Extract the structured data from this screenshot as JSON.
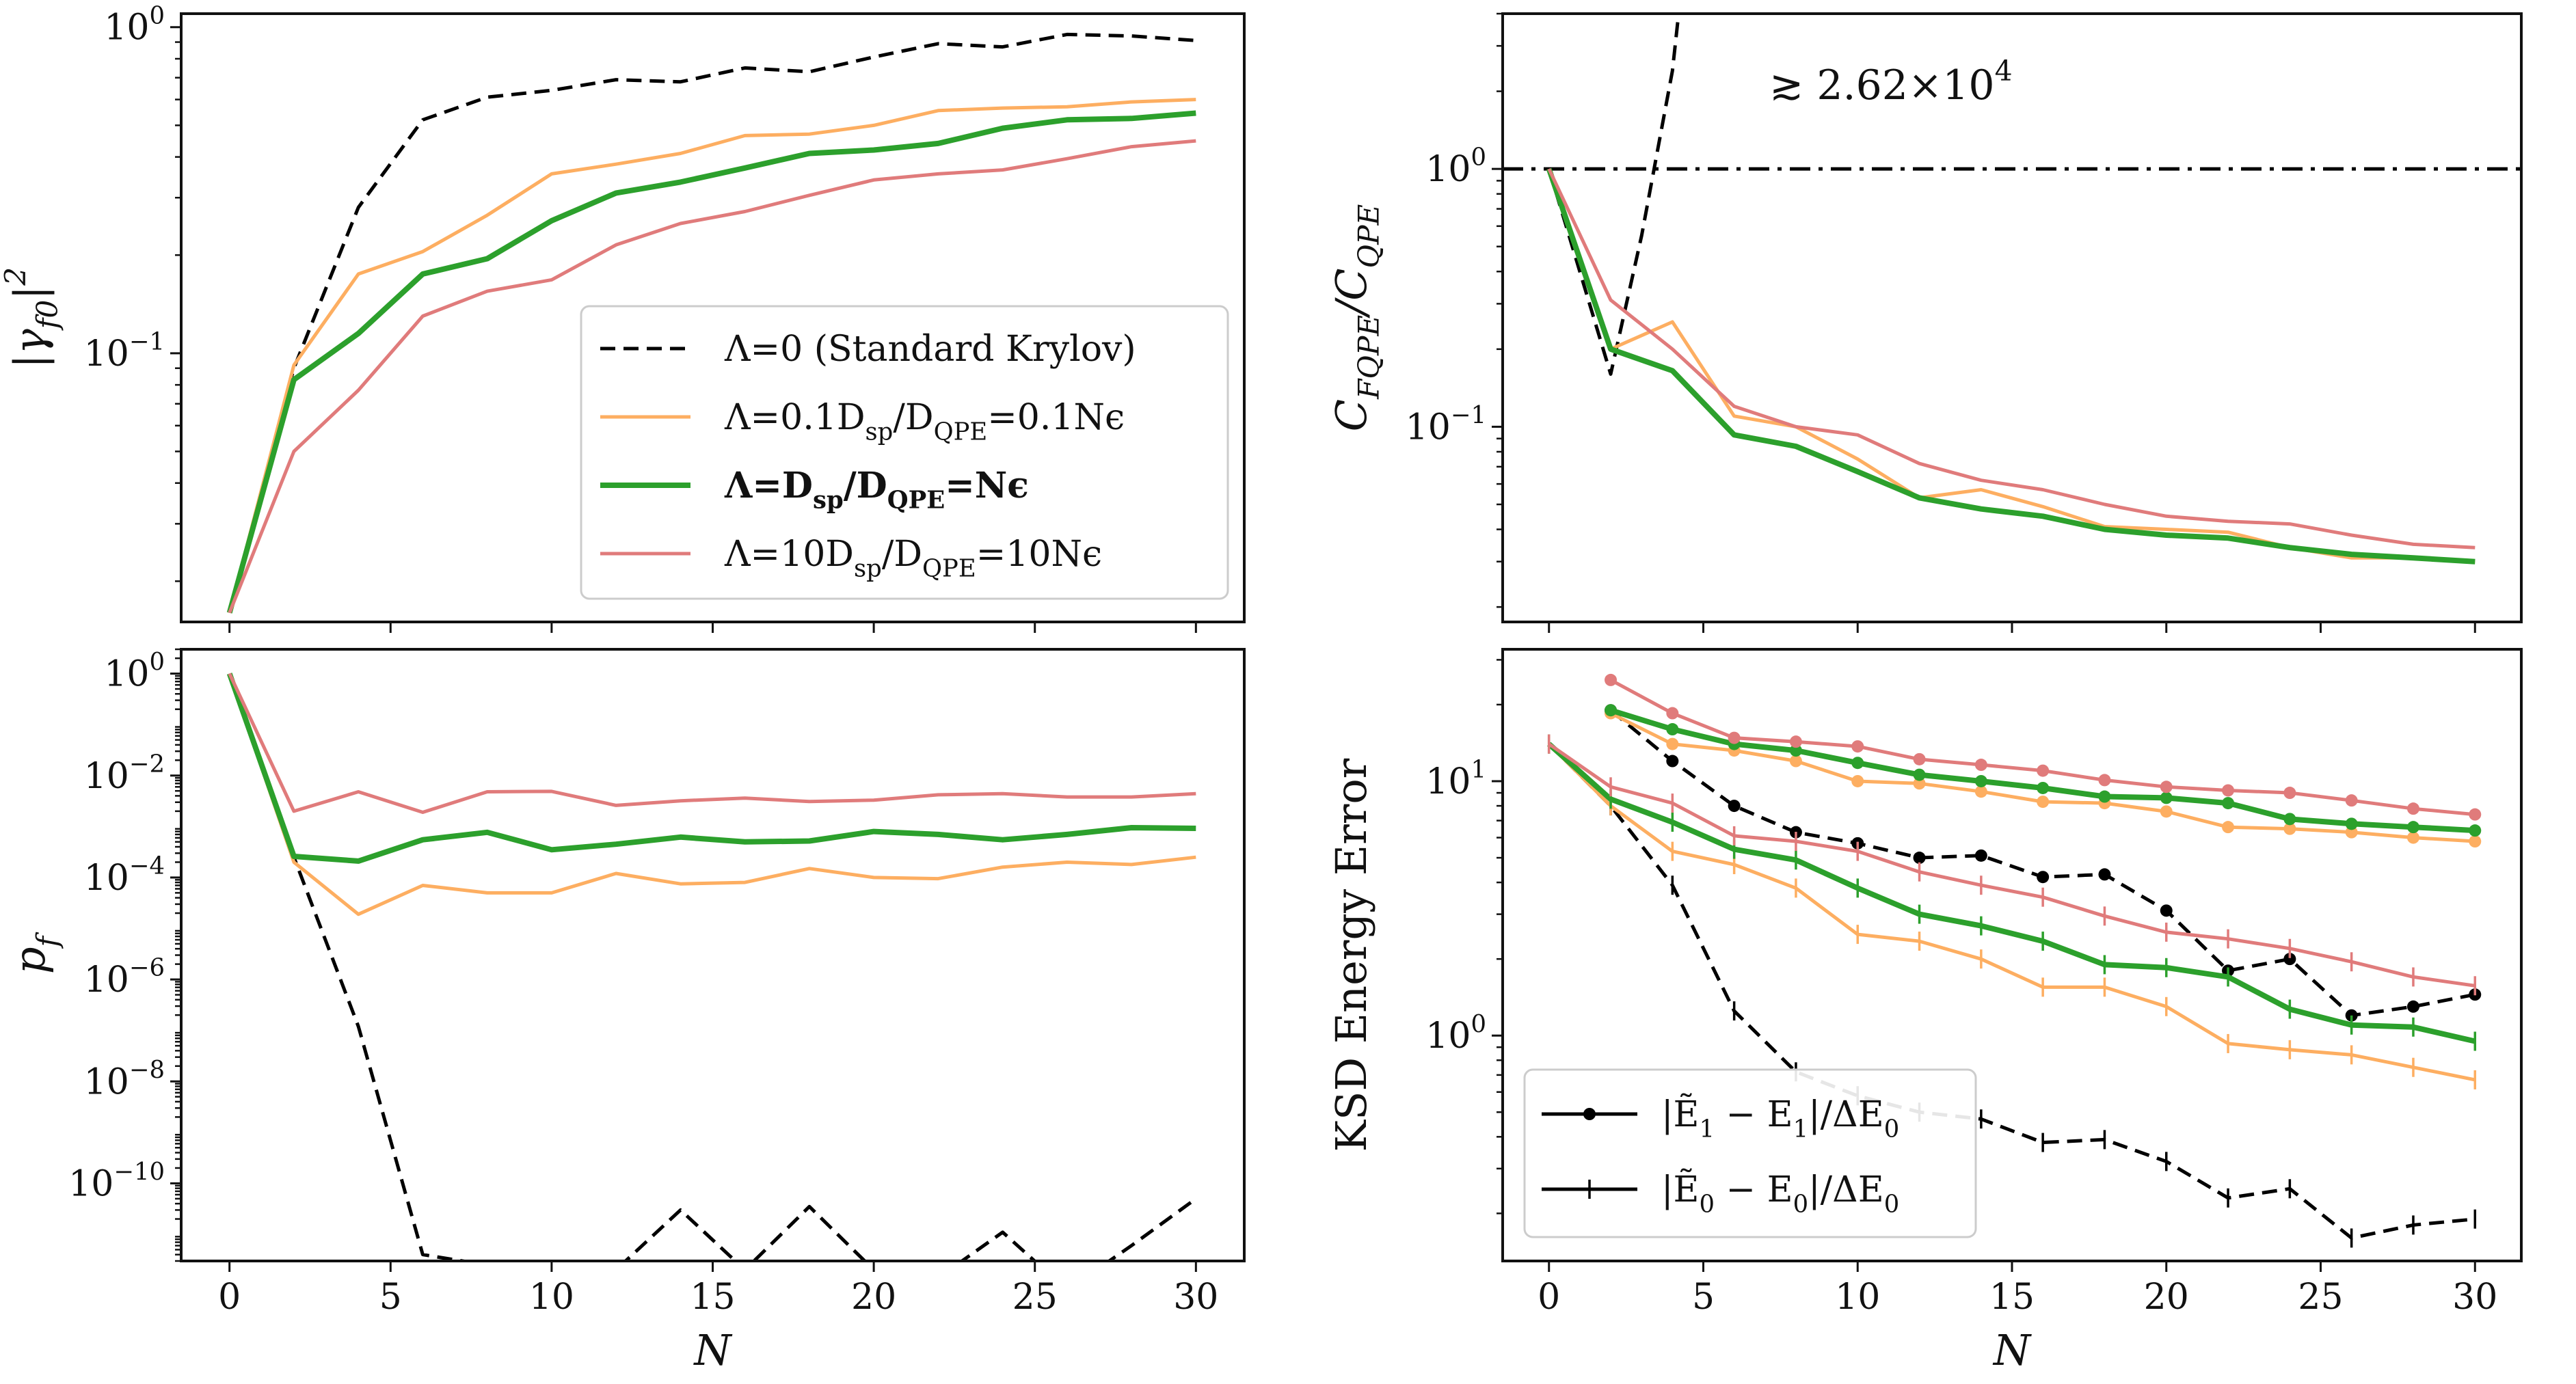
{
  "chart_data": [
    {
      "id": "top-left",
      "type": "line",
      "ylabel": "|γ_{f0}|^2",
      "yscale": "log",
      "ylim": [
        0.015,
        1.1
      ],
      "xlim": [
        -1.5,
        31.5
      ],
      "xticks": [
        0,
        5,
        10,
        15,
        20,
        25,
        30
      ],
      "xticklabels": [],
      "yticks": [
        {
          "v": 1,
          "label": "10^0"
        },
        {
          "v": 0.1,
          "label": "10^-1"
        }
      ],
      "legend": {
        "position": "lower-right",
        "entries": [
          {
            "label": "Λ=0 (Standard Krylov)",
            "color": "#000000",
            "dash": "dashed",
            "width": 5,
            "bold": false
          },
          {
            "label": "Λ=0.1D_sp/D_QPE=0.1Nϵ",
            "color": "#fdae61",
            "dash": "solid",
            "width": 5,
            "bold": false
          },
          {
            "label": "Λ=D_sp/D_QPE=Nϵ",
            "color": "#2ca02c",
            "dash": "solid",
            "width": 8,
            "bold": true
          },
          {
            "label": "Λ=10D_sp/D_QPE=10Nϵ",
            "color": "#e07b7b",
            "dash": "solid",
            "width": 5,
            "bold": false
          }
        ]
      },
      "series": [
        {
          "color": "#000000",
          "dash": "dashed",
          "width": 5,
          "x": [
            0,
            2,
            4,
            6,
            8,
            10,
            12,
            14,
            16,
            18,
            20,
            22,
            24,
            26,
            28,
            30
          ],
          "y": [
            0.016,
            0.09,
            0.28,
            0.52,
            0.61,
            0.64,
            0.69,
            0.68,
            0.75,
            0.73,
            0.81,
            0.89,
            0.87,
            0.95,
            0.94,
            0.91
          ]
        },
        {
          "color": "#fdae61",
          "dash": "solid",
          "width": 5,
          "x": [
            0,
            2,
            4,
            6,
            8,
            10,
            12,
            14,
            16,
            18,
            20,
            22,
            24,
            26,
            28,
            30
          ],
          "y": [
            0.016,
            0.092,
            0.175,
            0.205,
            0.265,
            0.355,
            0.38,
            0.41,
            0.465,
            0.47,
            0.5,
            0.555,
            0.565,
            0.57,
            0.59,
            0.6
          ]
        },
        {
          "color": "#2ca02c",
          "dash": "solid",
          "width": 8,
          "x": [
            0,
            2,
            4,
            6,
            8,
            10,
            12,
            14,
            16,
            18,
            20,
            22,
            24,
            26,
            28,
            30
          ],
          "y": [
            0.016,
            0.083,
            0.115,
            0.175,
            0.195,
            0.255,
            0.31,
            0.335,
            0.37,
            0.41,
            0.42,
            0.44,
            0.49,
            0.52,
            0.525,
            0.545
          ]
        },
        {
          "color": "#e07b7b",
          "dash": "solid",
          "width": 5,
          "x": [
            0,
            2,
            4,
            6,
            8,
            10,
            12,
            14,
            16,
            18,
            20,
            22,
            24,
            26,
            28,
            30
          ],
          "y": [
            0.016,
            0.05,
            0.077,
            0.13,
            0.155,
            0.168,
            0.215,
            0.25,
            0.272,
            0.305,
            0.34,
            0.355,
            0.365,
            0.395,
            0.43,
            0.448
          ]
        }
      ]
    },
    {
      "id": "top-right",
      "type": "line",
      "ylabel": "C_FQPE/C_QPE",
      "yscale": "log",
      "ylim": [
        0.0175,
        4.0
      ],
      "xlim": [
        -1.5,
        31.5
      ],
      "xticks": [
        0,
        5,
        10,
        15,
        20,
        25,
        30
      ],
      "xticklabels": [],
      "yticks": [
        {
          "v": 1,
          "label": "10^0"
        },
        {
          "v": 0.1,
          "label": "10^-1"
        }
      ],
      "hline": {
        "y": 1.0,
        "color": "#000000",
        "dash": "dashdot",
        "width": 5
      },
      "annotation": "≳ 2.62×10^4",
      "series": [
        {
          "color": "#000000",
          "dash": "dashed",
          "width": 5,
          "x": [
            0,
            2,
            3,
            4,
            4.2
          ],
          "y": [
            1.0,
            0.16,
            0.55,
            2.4,
            4.0
          ]
        },
        {
          "color": "#fdae61",
          "dash": "solid",
          "width": 5,
          "x": [
            0,
            2,
            4,
            6,
            8,
            10,
            12,
            14,
            16,
            18,
            20,
            22,
            24,
            26,
            28,
            30
          ],
          "y": [
            1.0,
            0.2,
            0.255,
            0.11,
            0.1,
            0.075,
            0.053,
            0.057,
            0.049,
            0.041,
            0.04,
            0.039,
            0.034,
            0.031,
            0.031,
            0.03
          ]
        },
        {
          "color": "#2ca02c",
          "dash": "solid",
          "width": 8,
          "x": [
            0,
            2,
            4,
            6,
            8,
            10,
            12,
            14,
            16,
            18,
            20,
            22,
            24,
            26,
            28,
            30
          ],
          "y": [
            1.0,
            0.2,
            0.165,
            0.093,
            0.084,
            0.067,
            0.053,
            0.048,
            0.045,
            0.04,
            0.038,
            0.037,
            0.034,
            0.032,
            0.031,
            0.03
          ]
        },
        {
          "color": "#e07b7b",
          "dash": "solid",
          "width": 5,
          "x": [
            0,
            2,
            4,
            6,
            8,
            10,
            12,
            14,
            16,
            18,
            20,
            22,
            24,
            26,
            28,
            30
          ],
          "y": [
            1.0,
            0.31,
            0.2,
            0.12,
            0.1,
            0.093,
            0.072,
            0.062,
            0.057,
            0.05,
            0.045,
            0.043,
            0.042,
            0.038,
            0.035,
            0.034
          ]
        }
      ]
    },
    {
      "id": "bottom-left",
      "type": "line",
      "ylabel": "p_f",
      "xlabel": "N",
      "yscale": "log",
      "ylim": [
        3e-12,
        3.0
      ],
      "xlim": [
        -1.5,
        31.5
      ],
      "xticks": [
        0,
        5,
        10,
        15,
        20,
        25,
        30
      ],
      "xticklabels": [
        "0",
        "5",
        "10",
        "15",
        "20",
        "25",
        "30"
      ],
      "yticks": [
        {
          "v": 1,
          "label": "10^0"
        },
        {
          "v": 0.01,
          "label": "10^-2"
        },
        {
          "v": 0.0001,
          "label": "10^-4"
        },
        {
          "v": 1e-06,
          "label": "10^-6"
        },
        {
          "v": 1e-08,
          "label": "10^-8"
        },
        {
          "v": 1e-10,
          "label": "10^-10"
        }
      ],
      "series": [
        {
          "color": "#000000",
          "dash": "dashed",
          "width": 5,
          "x": [
            0,
            2,
            4,
            6,
            8,
            10,
            12,
            14,
            16,
            18,
            20,
            22,
            24,
            26,
            28,
            30
          ],
          "y": [
            1.0,
            0.00025,
            1.2e-07,
            4e-12,
            2.5e-12,
            1.2e-12,
            2e-12,
            3e-11,
            2e-12,
            3.5e-11,
            2e-12,
            1.4e-12,
            1.1e-11,
            8e-13,
            6e-12,
            5e-11
          ]
        },
        {
          "color": "#fdae61",
          "dash": "solid",
          "width": 5,
          "x": [
            0,
            2,
            4,
            6,
            8,
            10,
            12,
            14,
            16,
            18,
            20,
            22,
            24,
            26,
            28,
            30
          ],
          "y": [
            1.0,
            0.0002,
            1.9e-05,
            7e-05,
            5e-05,
            5e-05,
            0.00012,
            7.5e-05,
            8e-05,
            0.00015,
            0.0001,
            9.5e-05,
            0.00016,
            0.0002,
            0.00018,
            0.00025
          ]
        },
        {
          "color": "#2ca02c",
          "dash": "solid",
          "width": 8,
          "x": [
            0,
            2,
            4,
            6,
            8,
            10,
            12,
            14,
            16,
            18,
            20,
            22,
            24,
            26,
            28,
            30
          ],
          "y": [
            1.0,
            0.00026,
            0.00021,
            0.00055,
            0.00077,
            0.00035,
            0.00045,
            0.00062,
            0.0005,
            0.00052,
            0.0008,
            0.0007,
            0.00055,
            0.0007,
            0.00095,
            0.00092
          ]
        },
        {
          "color": "#e07b7b",
          "dash": "solid",
          "width": 5,
          "x": [
            0,
            2,
            4,
            6,
            8,
            10,
            12,
            14,
            16,
            18,
            20,
            22,
            24,
            26,
            28,
            30
          ],
          "y": [
            1.0,
            0.002,
            0.0048,
            0.0019,
            0.0048,
            0.0049,
            0.0026,
            0.0032,
            0.0036,
            0.0031,
            0.0033,
            0.0042,
            0.0044,
            0.0038,
            0.0038,
            0.0044
          ]
        }
      ]
    },
    {
      "id": "bottom-right",
      "type": "line",
      "ylabel": "KSD Energy Error",
      "xlabel": "N",
      "yscale": "log",
      "ylim": [
        0.13,
        33
      ],
      "xlim": [
        -1.5,
        31.5
      ],
      "xticks": [
        0,
        5,
        10,
        15,
        20,
        25,
        30
      ],
      "xticklabels": [
        "0",
        "5",
        "10",
        "15",
        "20",
        "25",
        "30"
      ],
      "yticks": [
        {
          "v": 10,
          "label": "10^1"
        },
        {
          "v": 1,
          "label": "10^0"
        }
      ],
      "legend": {
        "position": "lower-left",
        "entries": [
          {
            "label": "|Ẽ_1 − E_1|/ΔE_0",
            "marker": "dot"
          },
          {
            "label": "|Ẽ_0 − E_0|/ΔE_0",
            "marker": "plus"
          }
        ]
      },
      "series": [
        {
          "color": "#000000",
          "dash": "dashed",
          "width": 5,
          "marker": "dot",
          "x": [
            2,
            4,
            6,
            8,
            10,
            12,
            14,
            16,
            18,
            20,
            22,
            24,
            26,
            28,
            30
          ],
          "y": [
            19.0,
            12.0,
            8.0,
            6.3,
            5.7,
            5.0,
            5.1,
            4.2,
            4.3,
            3.1,
            1.8,
            2.0,
            1.2,
            1.3,
            1.45
          ]
        },
        {
          "color": "#fdae61",
          "dash": "solid",
          "width": 5,
          "marker": "dot",
          "x": [
            2,
            4,
            6,
            8,
            10,
            12,
            14,
            16,
            18,
            20,
            22,
            24,
            26,
            28,
            30
          ],
          "y": [
            18.5,
            14.0,
            13.2,
            12.0,
            10.0,
            9.8,
            9.1,
            8.3,
            8.2,
            7.6,
            6.6,
            6.5,
            6.3,
            6.0,
            5.8
          ]
        },
        {
          "color": "#2ca02c",
          "dash": "solid",
          "width": 8,
          "marker": "dot",
          "x": [
            2,
            4,
            6,
            8,
            10,
            12,
            14,
            16,
            18,
            20,
            22,
            24,
            26,
            28,
            30
          ],
          "y": [
            19.0,
            16.0,
            14.0,
            13.2,
            11.8,
            10.6,
            10.0,
            9.4,
            8.7,
            8.6,
            8.2,
            7.1,
            6.8,
            6.6,
            6.4
          ]
        },
        {
          "color": "#e07b7b",
          "dash": "solid",
          "width": 5,
          "marker": "dot",
          "x": [
            2,
            4,
            6,
            8,
            10,
            12,
            14,
            16,
            18,
            20,
            22,
            24,
            26,
            28,
            30
          ],
          "y": [
            25.0,
            18.5,
            14.8,
            14.3,
            13.7,
            12.2,
            11.6,
            11.0,
            10.1,
            9.5,
            9.2,
            9.0,
            8.4,
            7.8,
            7.4
          ]
        },
        {
          "color": "#000000",
          "dash": "dashed",
          "width": 5,
          "marker": "plus",
          "x": [
            0,
            2,
            4,
            6,
            8,
            10,
            12,
            14,
            16,
            18,
            20,
            22,
            24,
            26,
            28,
            30
          ],
          "y": [
            14.0,
            8.0,
            3.9,
            1.25,
            0.72,
            0.58,
            0.5,
            0.47,
            0.38,
            0.39,
            0.32,
            0.23,
            0.25,
            0.16,
            0.18,
            0.19
          ]
        },
        {
          "color": "#fdae61",
          "dash": "solid",
          "width": 5,
          "marker": "plus",
          "x": [
            0,
            2,
            4,
            6,
            8,
            10,
            12,
            14,
            16,
            18,
            20,
            22,
            24,
            26,
            28,
            30
          ],
          "y": [
            14.0,
            8.0,
            5.3,
            4.7,
            3.8,
            2.5,
            2.35,
            2.0,
            1.55,
            1.55,
            1.3,
            0.93,
            0.88,
            0.84,
            0.75,
            0.67
          ]
        },
        {
          "color": "#2ca02c",
          "dash": "solid",
          "width": 8,
          "marker": "plus",
          "x": [
            0,
            2,
            4,
            6,
            8,
            10,
            12,
            14,
            16,
            18,
            20,
            22,
            24,
            26,
            28,
            30
          ],
          "y": [
            14.0,
            8.5,
            6.9,
            5.4,
            4.9,
            3.8,
            3.0,
            2.7,
            2.35,
            1.9,
            1.85,
            1.7,
            1.27,
            1.1,
            1.08,
            0.95
          ]
        },
        {
          "color": "#e07b7b",
          "dash": "solid",
          "width": 5,
          "marker": "plus",
          "x": [
            0,
            2,
            4,
            6,
            8,
            10,
            12,
            14,
            16,
            18,
            20,
            22,
            24,
            26,
            28,
            30
          ],
          "y": [
            14.0,
            9.5,
            8.2,
            6.1,
            5.8,
            5.3,
            4.4,
            3.9,
            3.5,
            2.95,
            2.55,
            2.4,
            2.2,
            1.95,
            1.7,
            1.57
          ]
        }
      ]
    }
  ]
}
